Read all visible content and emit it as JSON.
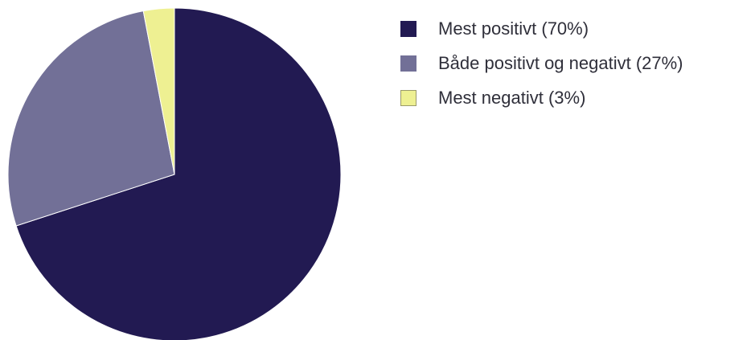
{
  "chart_data": {
    "type": "pie",
    "title": "",
    "start_angle_deg": 0,
    "direction": "clockwise",
    "series": [
      {
        "values": [
          70,
          27,
          3
        ],
        "categories": [
          "Mest positivt",
          "Både positivt og negativt",
          "Mest negativt"
        ]
      }
    ],
    "slices": [
      {
        "label": "Mest positivt (70%)",
        "value": 70,
        "color": "#221a52"
      },
      {
        "label": "Både positivt og negativt (27%)",
        "value": 27,
        "color": "#727097"
      },
      {
        "label": "Mest negativt (3%)",
        "value": 3,
        "color": "#eef092"
      }
    ],
    "legend": {
      "position": "right",
      "items": [
        "Mest positivt (70%)",
        "Både positivt og negativt (27%)",
        "Mest negativt (3%)"
      ]
    }
  }
}
